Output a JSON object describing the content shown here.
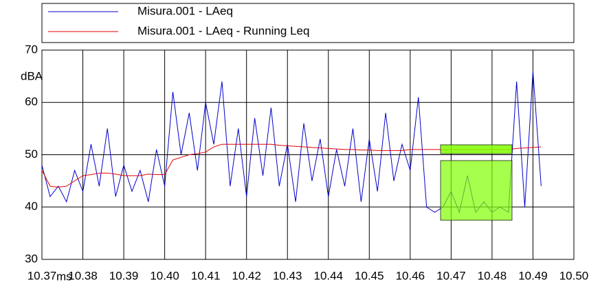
{
  "chart_data": {
    "type": "line",
    "ylabel": "dBA",
    "xlabel": "ms",
    "x": [
      10.37,
      10.372,
      10.374,
      10.376,
      10.378,
      10.38,
      10.382,
      10.384,
      10.386,
      10.388,
      10.39,
      10.392,
      10.394,
      10.396,
      10.398,
      10.4,
      10.402,
      10.404,
      10.406,
      10.408,
      10.41,
      10.412,
      10.414,
      10.416,
      10.418,
      10.42,
      10.422,
      10.424,
      10.426,
      10.428,
      10.43,
      10.432,
      10.434,
      10.436,
      10.438,
      10.44,
      10.442,
      10.444,
      10.446,
      10.448,
      10.45,
      10.452,
      10.454,
      10.456,
      10.458,
      10.46,
      10.462,
      10.464,
      10.466,
      10.468,
      10.47,
      10.472,
      10.474,
      10.476,
      10.478,
      10.48,
      10.482,
      10.484,
      10.486,
      10.488,
      10.49,
      10.492
    ],
    "series": [
      {
        "name": "Misura.001 - LAeq",
        "color": "#0000cc",
        "values": [
          48,
          42,
          44,
          41,
          47,
          43,
          52,
          44,
          55,
          42,
          48,
          43,
          47,
          41,
          51,
          44,
          62,
          50,
          58,
          47,
          60,
          52,
          64,
          44,
          55,
          42,
          57,
          46,
          59,
          44,
          52,
          41,
          56,
          45,
          53,
          42,
          51,
          44,
          55,
          41,
          53,
          43,
          58,
          45,
          52,
          47,
          61,
          40,
          39,
          40,
          43,
          39,
          46,
          39,
          41,
          39,
          40,
          39,
          64,
          40,
          66,
          44
        ]
      },
      {
        "name": "Misura.001 - LAeq - Running Leq",
        "color": "#e00000",
        "values": [
          47,
          44,
          43.8,
          44,
          45,
          46,
          46.2,
          46.5,
          46.5,
          46.3,
          46,
          46,
          46,
          46.3,
          46.2,
          46.2,
          49,
          49.5,
          50,
          50.2,
          50.5,
          51.5,
          52,
          52,
          52,
          52,
          52,
          52,
          52,
          51.8,
          51.7,
          51.6,
          51.5,
          51.4,
          51.3,
          51.2,
          51.1,
          51,
          51,
          50.9,
          50.9,
          50.8,
          50.8,
          50.8,
          50.8,
          51,
          51,
          51,
          51,
          51,
          51,
          51,
          51,
          51,
          51,
          51,
          51,
          51,
          51.2,
          51.3,
          51.4,
          51.5
        ]
      }
    ],
    "xlim": [
      10.37,
      10.5
    ],
    "xticks": [
      10.37,
      10.38,
      10.39,
      {
        "value": 10.4,
        "label": "10.40"
      },
      10.41,
      10.42,
      10.43,
      10.44,
      10.45,
      10.46,
      10.47,
      10.48,
      10.49,
      {
        "value": 10.5,
        "label": "10.50"
      }
    ],
    "ylim": [
      30,
      70
    ],
    "yticks": [
      30,
      40,
      50,
      60,
      70
    ],
    "grid": true
  }
}
